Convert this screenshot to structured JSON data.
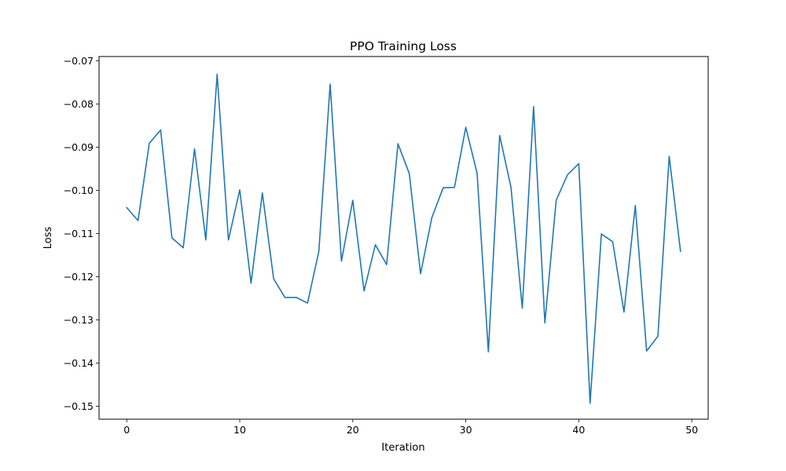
{
  "chart_data": {
    "type": "line",
    "title": "PPO Training Loss",
    "xlabel": "Iteration",
    "ylabel": "Loss",
    "xlim": [
      -2.45,
      51.45
    ],
    "ylim": [
      -0.153,
      -0.069
    ],
    "xticks": [
      0,
      10,
      20,
      30,
      40,
      50
    ],
    "xtick_labels": [
      "0",
      "10",
      "20",
      "30",
      "40",
      "50"
    ],
    "yticks": [
      -0.15,
      -0.14,
      -0.13,
      -0.12,
      -0.11,
      -0.1,
      -0.09,
      -0.08,
      -0.07
    ],
    "ytick_labels": [
      "−0.15",
      "−0.14",
      "−0.13",
      "−0.12",
      "−0.11",
      "−0.10",
      "−0.09",
      "−0.08",
      "−0.07"
    ],
    "grid": false,
    "legend": null,
    "series": [
      {
        "color": "#1f77b4",
        "x": [
          0,
          1,
          2,
          3,
          4,
          5,
          6,
          7,
          8,
          9,
          10,
          11,
          12,
          13,
          14,
          15,
          16,
          17,
          18,
          19,
          20,
          21,
          22,
          23,
          24,
          25,
          26,
          27,
          28,
          29,
          30,
          31,
          32,
          33,
          34,
          35,
          36,
          37,
          38,
          39,
          40,
          41,
          42,
          43,
          44,
          45,
          46,
          47,
          48,
          49
        ],
        "y": [
          -0.104,
          -0.107,
          -0.0891,
          -0.086,
          -0.111,
          -0.1133,
          -0.0904,
          -0.1115,
          -0.0731,
          -0.1115,
          -0.0999,
          -0.1215,
          -0.1006,
          -0.1205,
          -0.1248,
          -0.1248,
          -0.1261,
          -0.1141,
          -0.0754,
          -0.1164,
          -0.1023,
          -0.1233,
          -0.1126,
          -0.1172,
          -0.0892,
          -0.0961,
          -0.1193,
          -0.1063,
          -0.0994,
          -0.0993,
          -0.0854,
          -0.096,
          -0.1374,
          -0.0873,
          -0.0993,
          -0.1273,
          -0.0806,
          -0.1307,
          -0.1023,
          -0.0964,
          -0.0938,
          -0.1493,
          -0.1101,
          -0.1119,
          -0.1282,
          -0.1035,
          -0.1372,
          -0.1338,
          -0.0921,
          -0.1141
        ]
      }
    ]
  }
}
